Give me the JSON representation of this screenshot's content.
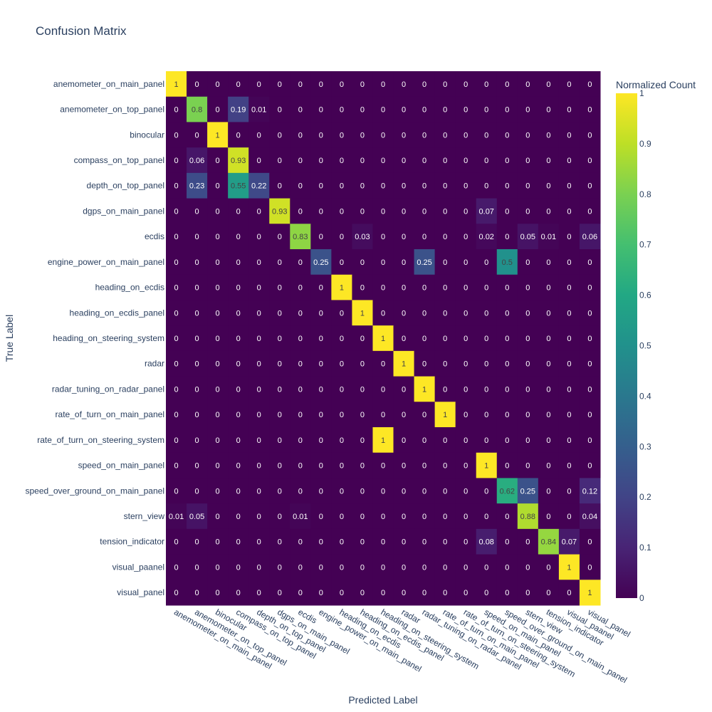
{
  "chart_data": {
    "type": "heatmap",
    "title": "Confusion Matrix",
    "xlabel": "Predicted Label",
    "ylabel": "True Label",
    "colorbar_title": "Normalized Count",
    "colorbar_ticks": [
      "0",
      "0.1",
      "0.2",
      "0.3",
      "0.4",
      "0.5",
      "0.6",
      "0.7",
      "0.8",
      "0.9",
      "1"
    ],
    "zrange": [
      0,
      1
    ],
    "colorscale": "viridis",
    "colors": {
      "low": "#440154",
      "high": "#fde725",
      "text_dark": "#444444",
      "text_light": "#ffffff",
      "axis_text": "#2a3f5f"
    },
    "labels": [
      "anemometer_on_main_panel",
      "anemometer_on_top_panel",
      "binocular",
      "compass_on_top_panel",
      "depth_on_top_panel",
      "dgps_on_main_panel",
      "ecdis",
      "engine_power_on_main_panel",
      "heading_on_ecdis",
      "heading_on_ecdis_panel",
      "heading_on_steering_system",
      "radar",
      "radar_tuning_on_radar_panel",
      "rate_of_turn_on_main_panel",
      "rate_of_turn_on_steering_system",
      "speed_on_main_panel",
      "speed_over_ground_on_main_panel",
      "stern_view",
      "tension_indicator",
      "visual_paanel",
      "visual_panel"
    ],
    "matrix": [
      [
        1,
        0,
        0,
        0,
        0,
        0,
        0,
        0,
        0,
        0,
        0,
        0,
        0,
        0,
        0,
        0,
        0,
        0,
        0,
        0,
        0
      ],
      [
        0,
        0.8,
        0,
        0.19,
        0.01,
        0,
        0,
        0,
        0,
        0,
        0,
        0,
        0,
        0,
        0,
        0,
        0,
        0,
        0,
        0,
        0
      ],
      [
        0,
        0,
        1,
        0,
        0,
        0,
        0,
        0,
        0,
        0,
        0,
        0,
        0,
        0,
        0,
        0,
        0,
        0,
        0,
        0,
        0
      ],
      [
        0,
        0.06,
        0,
        0.93,
        0,
        0,
        0,
        0,
        0,
        0,
        0,
        0,
        0,
        0,
        0,
        0,
        0,
        0,
        0,
        0,
        0
      ],
      [
        0,
        0.23,
        0,
        0.55,
        0.22,
        0,
        0,
        0,
        0,
        0,
        0,
        0,
        0,
        0,
        0,
        0,
        0,
        0,
        0,
        0,
        0
      ],
      [
        0,
        0,
        0,
        0,
        0,
        0.93,
        0,
        0,
        0,
        0,
        0,
        0,
        0,
        0,
        0,
        0.07,
        0,
        0,
        0,
        0,
        0
      ],
      [
        0,
        0,
        0,
        0,
        0,
        0,
        0.83,
        0,
        0,
        0.03,
        0,
        0,
        0,
        0,
        0,
        0.02,
        0,
        0.05,
        0.01,
        0,
        0.06
      ],
      [
        0,
        0,
        0,
        0,
        0,
        0,
        0,
        0.25,
        0,
        0,
        0,
        0,
        0.25,
        0,
        0,
        0,
        0.5,
        0,
        0,
        0,
        0
      ],
      [
        0,
        0,
        0,
        0,
        0,
        0,
        0,
        0,
        1,
        0,
        0,
        0,
        0,
        0,
        0,
        0,
        0,
        0,
        0,
        0,
        0
      ],
      [
        0,
        0,
        0,
        0,
        0,
        0,
        0,
        0,
        0,
        1,
        0,
        0,
        0,
        0,
        0,
        0,
        0,
        0,
        0,
        0,
        0
      ],
      [
        0,
        0,
        0,
        0,
        0,
        0,
        0,
        0,
        0,
        0,
        1,
        0,
        0,
        0,
        0,
        0,
        0,
        0,
        0,
        0,
        0
      ],
      [
        0,
        0,
        0,
        0,
        0,
        0,
        0,
        0,
        0,
        0,
        0,
        1,
        0,
        0,
        0,
        0,
        0,
        0,
        0,
        0,
        0
      ],
      [
        0,
        0,
        0,
        0,
        0,
        0,
        0,
        0,
        0,
        0,
        0,
        0,
        1,
        0,
        0,
        0,
        0,
        0,
        0,
        0,
        0
      ],
      [
        0,
        0,
        0,
        0,
        0,
        0,
        0,
        0,
        0,
        0,
        0,
        0,
        0,
        1,
        0,
        0,
        0,
        0,
        0,
        0,
        0
      ],
      [
        0,
        0,
        0,
        0,
        0,
        0,
        0,
        0,
        0,
        0,
        1,
        0,
        0,
        0,
        0,
        0,
        0,
        0,
        0,
        0,
        0
      ],
      [
        0,
        0,
        0,
        0,
        0,
        0,
        0,
        0,
        0,
        0,
        0,
        0,
        0,
        0,
        0,
        1,
        0,
        0,
        0,
        0,
        0
      ],
      [
        0,
        0,
        0,
        0,
        0,
        0,
        0,
        0,
        0,
        0,
        0,
        0,
        0,
        0,
        0,
        0,
        0.62,
        0.25,
        0,
        0,
        0.12
      ],
      [
        0.01,
        0.05,
        0,
        0,
        0,
        0,
        0.01,
        0,
        0,
        0,
        0,
        0,
        0,
        0,
        0,
        0,
        0,
        0.88,
        0,
        0,
        0.04
      ],
      [
        0,
        0,
        0,
        0,
        0,
        0,
        0,
        0,
        0,
        0,
        0,
        0,
        0,
        0,
        0,
        0.08,
        0,
        0,
        0.84,
        0.07,
        0
      ],
      [
        0,
        0,
        0,
        0,
        0,
        0,
        0,
        0,
        0,
        0,
        0,
        0,
        0,
        0,
        0,
        0,
        0,
        0,
        0,
        1,
        0
      ],
      [
        0,
        0,
        0,
        0,
        0,
        0,
        0,
        0,
        0,
        0,
        0,
        0,
        0,
        0,
        0,
        0,
        0,
        0,
        0,
        0,
        1
      ]
    ]
  }
}
